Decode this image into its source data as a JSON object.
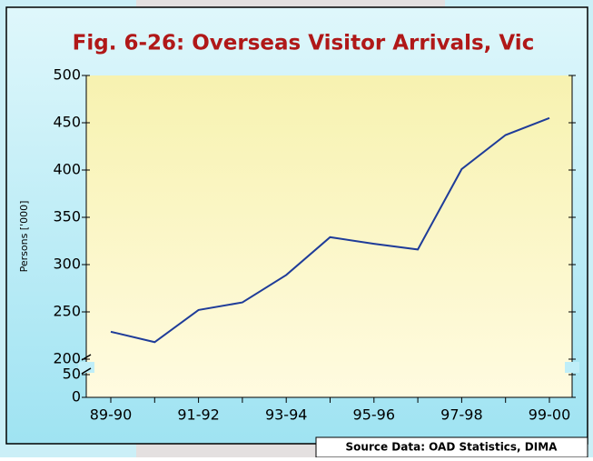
{
  "chart_data": {
    "type": "line",
    "title": "Fig. 6-26: Overseas Visitor Arrivals, Vic",
    "ylabel": "Persons ['000]",
    "source": "Source Data: OAD Statistics, DIMA",
    "categories": [
      "89-90",
      null,
      "91-92",
      null,
      "93-94",
      null,
      "95-96",
      null,
      "97-98",
      null,
      "99-00"
    ],
    "values": [
      229,
      218,
      252,
      260,
      289,
      329,
      322,
      316,
      401,
      437,
      455
    ],
    "color": "#1f3c99",
    "ylim": [
      0,
      500
    ],
    "axis_break": [
      50,
      200
    ],
    "yticks": [
      0,
      50,
      200,
      250,
      300,
      350,
      400,
      450,
      500
    ]
  }
}
